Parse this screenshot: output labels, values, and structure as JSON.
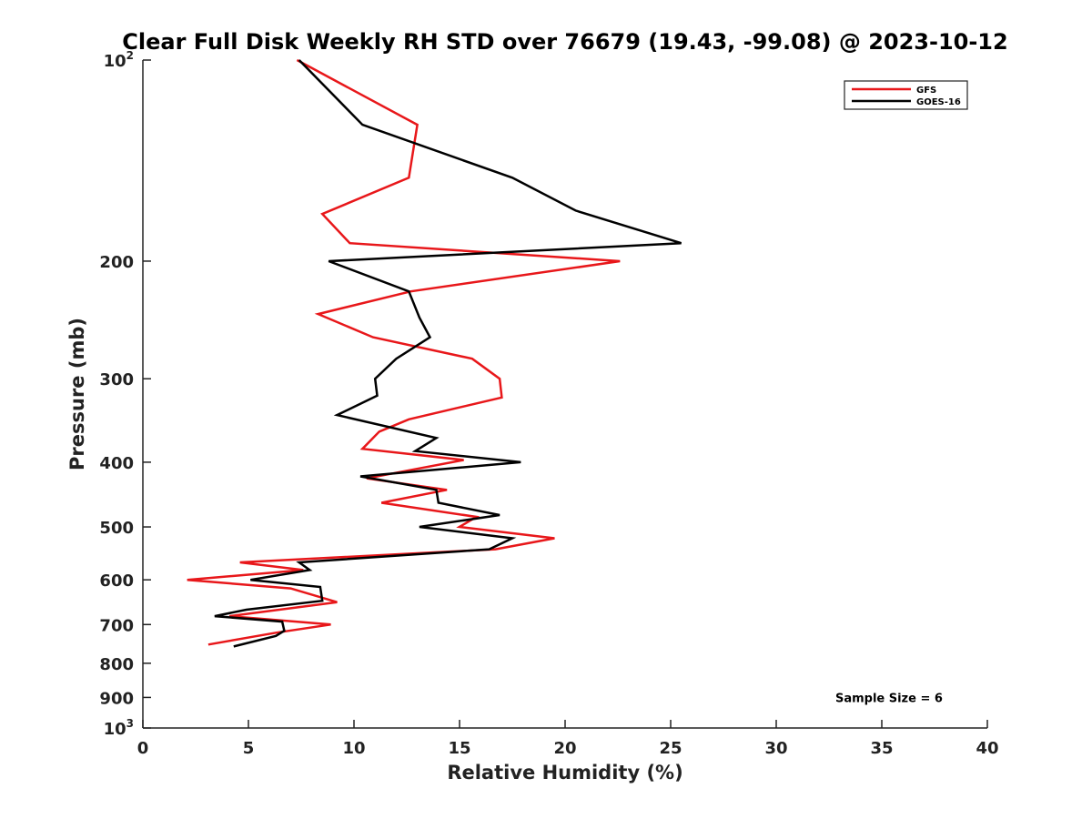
{
  "chart_data": {
    "type": "line",
    "title": "Clear Full Disk Weekly RH STD over 76679 (19.43, -99.08) @ 2023-10-12",
    "xlabel": "Relative Humidity (%)",
    "ylabel": "Pressure (mb)",
    "xlim": [
      0,
      40
    ],
    "ylim": [
      100,
      1000
    ],
    "y_scale": "log",
    "y_reversed": true,
    "grid": false,
    "legend_position": "top-right",
    "x_ticks": [
      "0",
      "5",
      "10",
      "15",
      "20",
      "25",
      "30",
      "35",
      "40"
    ],
    "y_ticks": [
      {
        "value": 100,
        "label": "",
        "base": "10",
        "exp": "2"
      },
      {
        "value": 200,
        "label": "200"
      },
      {
        "value": 300,
        "label": "300"
      },
      {
        "value": 400,
        "label": "400"
      },
      {
        "value": 500,
        "label": "500"
      },
      {
        "value": 600,
        "label": "600"
      },
      {
        "value": 700,
        "label": "700"
      },
      {
        "value": 800,
        "label": "800"
      },
      {
        "value": 900,
        "label": "900"
      },
      {
        "value": 1000,
        "label": "",
        "base": "10",
        "exp": "3"
      }
    ],
    "series": [
      {
        "name": "GFS",
        "color": "#e8171a",
        "points": [
          [
            7.3,
            100
          ],
          [
            13.0,
            125
          ],
          [
            12.6,
            150
          ],
          [
            8.5,
            170
          ],
          [
            9.8,
            188
          ],
          [
            22.6,
            200
          ],
          [
            12.7,
            222
          ],
          [
            8.3,
            240
          ],
          [
            10.9,
            260
          ],
          [
            15.6,
            280
          ],
          [
            16.9,
            300
          ],
          [
            17.0,
            320
          ],
          [
            12.6,
            345
          ],
          [
            11.2,
            360
          ],
          [
            10.4,
            382
          ],
          [
            15.2,
            397
          ],
          [
            10.6,
            423
          ],
          [
            14.4,
            440
          ],
          [
            11.3,
            460
          ],
          [
            15.8,
            483
          ],
          [
            15.0,
            500
          ],
          [
            19.5,
            520
          ],
          [
            16.7,
            540
          ],
          [
            4.6,
            565
          ],
          [
            7.6,
            580
          ],
          [
            2.1,
            600
          ],
          [
            7.0,
            618
          ],
          [
            9.2,
            648
          ],
          [
            4.1,
            680
          ],
          [
            8.9,
            700
          ],
          [
            6.3,
            720
          ],
          [
            3.1,
            750
          ]
        ]
      },
      {
        "name": "GOES-16",
        "color": "#000000",
        "points": [
          [
            7.4,
            100
          ],
          [
            10.4,
            125
          ],
          [
            17.5,
            150
          ],
          [
            20.5,
            168
          ],
          [
            25.5,
            188
          ],
          [
            8.8,
            200
          ],
          [
            12.6,
            222
          ],
          [
            13.1,
            243
          ],
          [
            13.6,
            260
          ],
          [
            12.0,
            280
          ],
          [
            11.0,
            300
          ],
          [
            11.1,
            318
          ],
          [
            9.2,
            340
          ],
          [
            13.9,
            368
          ],
          [
            12.9,
            385
          ],
          [
            17.9,
            400
          ],
          [
            10.3,
            420
          ],
          [
            13.9,
            440
          ],
          [
            14.0,
            460
          ],
          [
            16.9,
            480
          ],
          [
            13.1,
            500
          ],
          [
            17.5,
            520
          ],
          [
            16.4,
            540
          ],
          [
            7.4,
            565
          ],
          [
            7.9,
            580
          ],
          [
            5.1,
            600
          ],
          [
            8.4,
            615
          ],
          [
            8.5,
            645
          ],
          [
            4.9,
            665
          ],
          [
            3.4,
            680
          ],
          [
            6.6,
            693
          ],
          [
            6.7,
            715
          ],
          [
            6.3,
            728
          ],
          [
            4.3,
            755
          ]
        ]
      }
    ],
    "annotations": [
      {
        "text": "Sample Size = 6",
        "x": 32.8,
        "y": 900
      }
    ]
  }
}
